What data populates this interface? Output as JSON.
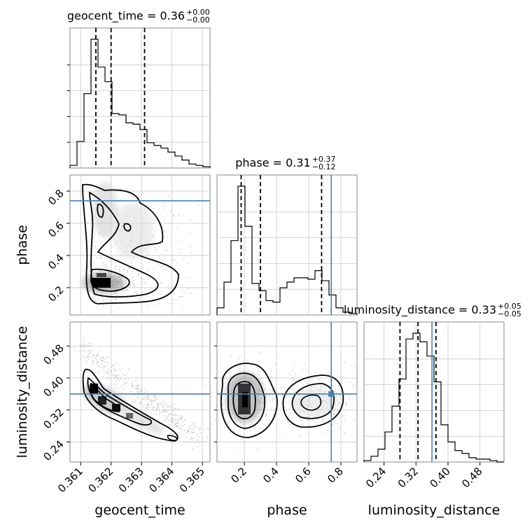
{
  "chart_data": {
    "type": "corner",
    "parameters": [
      "geocent_time",
      "phase",
      "luminosity_distance"
    ],
    "truths": {
      "geocent_time": null,
      "phase": 0.74,
      "luminosity_distance": 0.36
    },
    "titles": [
      {
        "param": "geocent_time",
        "label": "geocent_time = 0.36",
        "sup": "+0.00",
        "sub": "−0.00"
      },
      {
        "param": "phase",
        "label": "phase = 0.31",
        "sup": "+0.37",
        "sub": "−0.12"
      },
      {
        "param": "luminosity_distance",
        "label": "luminosity_distance = 0.33",
        "sup": "+0.05",
        "sub": "−0.05"
      }
    ],
    "axis_labels": {
      "x": [
        "geocent_time",
        "phase",
        "luminosity_distance"
      ],
      "y": [
        "phase",
        "luminosity_distance"
      ]
    },
    "ticks": {
      "geocent_time": [
        "0.361",
        "0.362",
        "0.363",
        "0.364",
        "0.365"
      ],
      "phase": [
        "0.2",
        "0.4",
        "0.6",
        "0.8"
      ],
      "luminosity_distance": [
        "0.24",
        "0.32",
        "0.40",
        "0.48"
      ]
    },
    "ranges": {
      "geocent_time": [
        0.36065,
        0.36525
      ],
      "phase": [
        0.03,
        0.9
      ],
      "luminosity_distance": [
        0.19,
        0.54
      ]
    },
    "quantiles": {
      "geocent_time": [
        0.3615,
        0.362,
        0.3631
      ],
      "phase": [
        0.18,
        0.3,
        0.68
      ],
      "luminosity_distance": [
        0.28,
        0.325,
        0.37
      ]
    },
    "histograms": {
      "geocent_time": {
        "edges": [
          0.36065,
          0.36088,
          0.36111,
          0.36134,
          0.36157,
          0.3618,
          0.36203,
          0.36226,
          0.36249,
          0.36272,
          0.36295,
          0.36318,
          0.36341,
          0.36364,
          0.36387,
          0.3641,
          0.36433,
          0.36456,
          0.36479,
          0.36502,
          0.36525
        ],
        "counts": [
          2,
          20,
          56,
          97,
          76,
          65,
          41,
          40,
          34,
          33,
          29,
          19,
          17,
          15,
          12,
          9,
          6,
          3,
          2,
          1
        ]
      },
      "phase": {
        "edges": [
          0.03,
          0.0735,
          0.117,
          0.1605,
          0.204,
          0.2475,
          0.291,
          0.3345,
          0.378,
          0.4215,
          0.465,
          0.5085,
          0.552,
          0.5955,
          0.639,
          0.6825,
          0.726,
          0.7695,
          0.813,
          0.8565,
          0.9
        ],
        "counts": [
          5,
          23,
          52,
          90,
          62,
          22,
          17,
          10,
          9,
          19,
          23,
          26,
          26,
          25,
          31,
          24,
          14,
          5,
          2,
          1
        ]
      },
      "luminosity_distance": {
        "edges": [
          0.19,
          0.2075,
          0.225,
          0.2425,
          0.26,
          0.2775,
          0.295,
          0.3125,
          0.33,
          0.3475,
          0.365,
          0.3825,
          0.4,
          0.4175,
          0.435,
          0.4525,
          0.47,
          0.4875,
          0.505,
          0.5225,
          0.54
        ],
        "counts": [
          1,
          4,
          9,
          21,
          39,
          58,
          86,
          90,
          84,
          74,
          56,
          26,
          14,
          8,
          6,
          3,
          2,
          2,
          1,
          0
        ]
      }
    },
    "grid": true
  }
}
